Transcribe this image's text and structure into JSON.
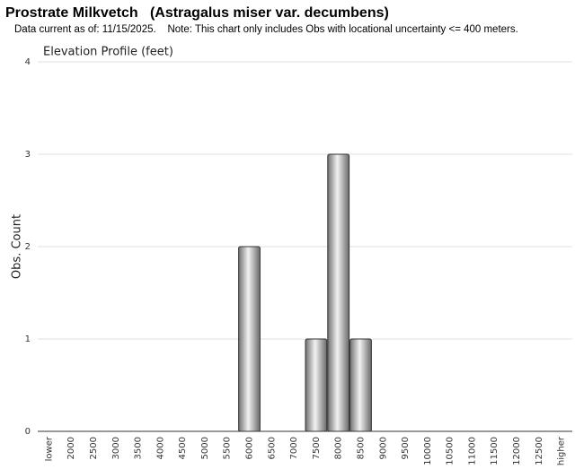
{
  "chart_data": {
    "type": "bar",
    "title": "Prostrate Milkvetch   (Astragalus miser var. decumbens)",
    "subtitle": "Data current as of: 11/15/2025.    Note: This chart only includes Obs with locational uncertainty <= 400 meters.",
    "chart_title": "Elevation Profile (feet)",
    "y_label": "Obs. Count",
    "categories": [
      "lower",
      "2000",
      "2500",
      "3000",
      "3500",
      "4000",
      "4500",
      "5000",
      "5500",
      "6000",
      "6500",
      "7000",
      "7500",
      "8000",
      "8500",
      "9000",
      "9500",
      "10000",
      "10500",
      "11000",
      "11500",
      "12000",
      "12500",
      "higher"
    ],
    "values": [
      0,
      0,
      0,
      0,
      0,
      0,
      0,
      0,
      0,
      2,
      0,
      0,
      1,
      3,
      1,
      0,
      0,
      0,
      0,
      0,
      0,
      0,
      0,
      0
    ],
    "color": "#a0a0a0",
    "ylim": [
      0,
      4
    ],
    "yticks": [
      0,
      1,
      2,
      3,
      4
    ],
    "grid": true
  }
}
